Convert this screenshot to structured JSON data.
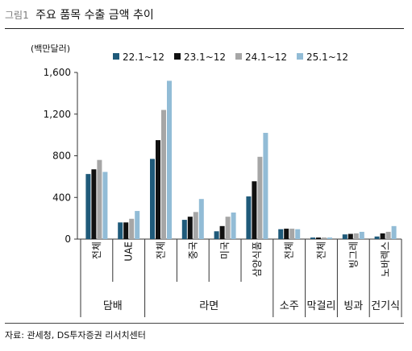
{
  "figure": {
    "number": "그림1",
    "title": "주요 품목 수출 금액 추이",
    "source": "자료: 관세청, DS투자증권 리서치센터"
  },
  "chart_data": {
    "type": "bar",
    "unit_label": "(백만달러)",
    "ylim": [
      0,
      1600
    ],
    "yticks": [
      0,
      400,
      800,
      1200,
      1600
    ],
    "ytick_labels": [
      "0",
      "400",
      "800",
      "1,200",
      "1,600"
    ],
    "grid": false,
    "legend_position": "top",
    "categories": [
      "전체",
      "UAE",
      "전체",
      "중국",
      "미국",
      "삼양식품",
      "전체",
      "전체",
      "빙그레",
      "노바렉스"
    ],
    "groups": [
      {
        "label": "담배",
        "categories": [
          0,
          1
        ]
      },
      {
        "label": "라면",
        "categories": [
          2,
          3,
          4,
          5
        ]
      },
      {
        "label": "소주",
        "categories": [
          6
        ]
      },
      {
        "label": "막걸리",
        "categories": [
          7
        ]
      },
      {
        "label": "빙과",
        "categories": [
          8
        ]
      },
      {
        "label": "건기식",
        "categories": [
          9
        ]
      }
    ],
    "series": [
      {
        "name": "22.1~12",
        "color": "#1f5a7a",
        "values": [
          625,
          160,
          770,
          185,
          75,
          410,
          95,
          15,
          45,
          25
        ]
      },
      {
        "name": "23.1~12",
        "color": "#111111",
        "values": [
          670,
          160,
          950,
          215,
          125,
          555,
          100,
          15,
          50,
          55
        ]
      },
      {
        "name": "24.1~12",
        "color": "#a6a6a6",
        "values": [
          760,
          195,
          1240,
          260,
          215,
          790,
          100,
          15,
          55,
          70
        ]
      },
      {
        "name": "25.1~12",
        "color": "#92bcd6",
        "values": [
          645,
          270,
          1520,
          385,
          255,
          1020,
          95,
          15,
          70,
          125
        ]
      }
    ]
  }
}
